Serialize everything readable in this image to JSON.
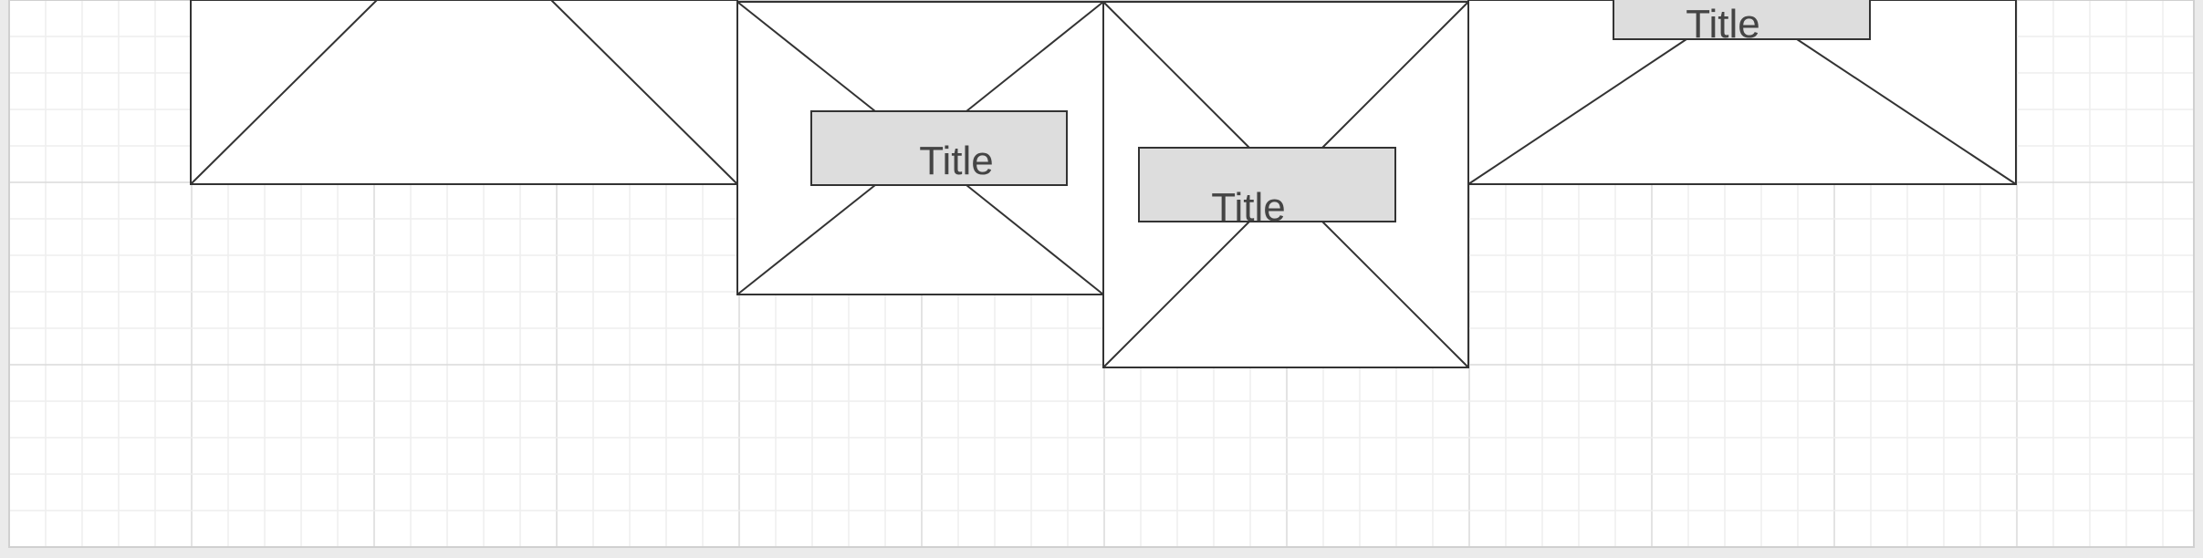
{
  "canvas": {
    "background": "#ffffff",
    "outside_background": "#ebebeb",
    "grid_minor_color": "#eeeeee",
    "grid_major_color": "#dadada",
    "border_color": "#d0d0d0"
  },
  "shape_style": {
    "stroke": "#333333",
    "fill": "#ffffff",
    "title_fill": "#dddddd",
    "title_stroke": "#333333",
    "text_color": "#444444"
  },
  "wireframes": [
    {
      "id": "wireframe-1",
      "title": ""
    },
    {
      "id": "wireframe-2",
      "title": "Title"
    },
    {
      "id": "wireframe-3",
      "title": "Title"
    },
    {
      "id": "wireframe-4",
      "title": "Title"
    }
  ]
}
